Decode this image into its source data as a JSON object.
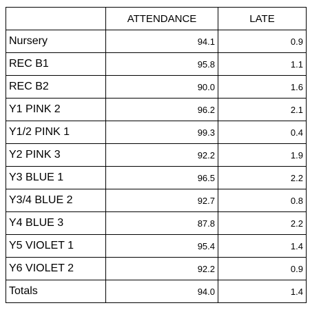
{
  "table": {
    "headers": [
      "",
      "ATTENDANCE",
      "LATE"
    ],
    "rows": [
      {
        "label": "Nursery",
        "attendance": "94.1",
        "late": "0.9"
      },
      {
        "label": "REC B1",
        "attendance": "95.8",
        "late": "1.1"
      },
      {
        "label": "REC B2",
        "attendance": "90.0",
        "late": "1.6"
      },
      {
        "label": "Y1 PINK 2",
        "attendance": "96.2",
        "late": "2.1"
      },
      {
        "label": "Y1/2 PINK 1",
        "attendance": "99.3",
        "late": "0.4"
      },
      {
        "label": "Y2 PINK 3",
        "attendance": "92.2",
        "late": "1.9"
      },
      {
        "label": "Y3 BLUE 1",
        "attendance": "96.5",
        "late": "2.2"
      },
      {
        "label": "Y3/4 BLUE 2",
        "attendance": "92.7",
        "late": "0.8"
      },
      {
        "label": "Y4 BLUE 3",
        "attendance": "87.8",
        "late": "2.2"
      },
      {
        "label": "Y5 VIOLET 1",
        "attendance": "95.4",
        "late": "1.4"
      },
      {
        "label": "Y6 VIOLET 2",
        "attendance": "92.2",
        "late": "0.9"
      },
      {
        "label": "Totals",
        "attendance": "94.0",
        "late": "1.4"
      }
    ]
  }
}
